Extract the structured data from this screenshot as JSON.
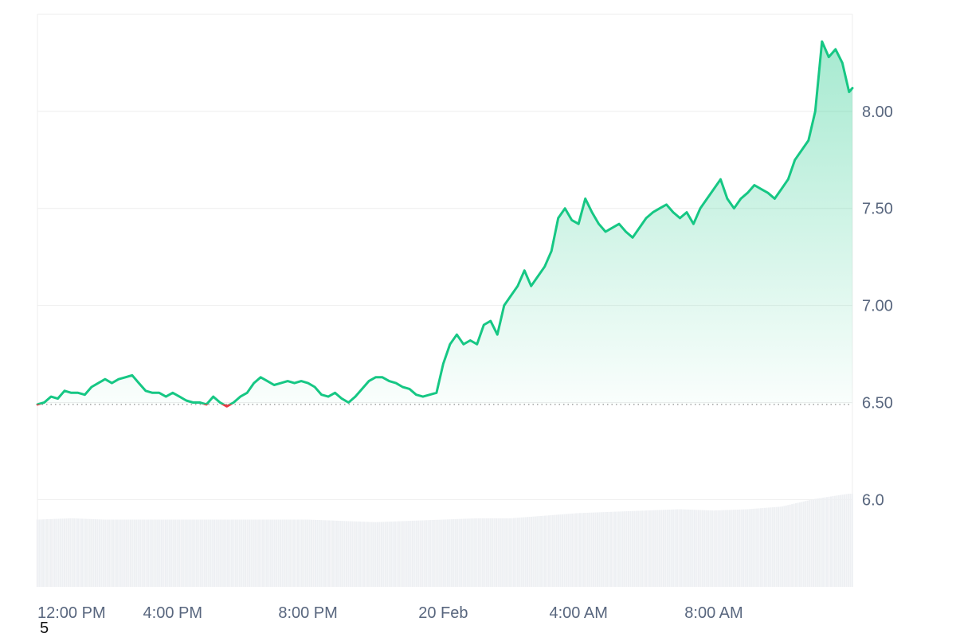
{
  "corner_text": "5",
  "colors": {
    "line_up": "#16c784",
    "line_down": "#ea3943",
    "fill_top": "#16c784",
    "grid": "#eeeeee",
    "baseline_dotted": "#999999",
    "volume": "#eef0f3",
    "axis_text": "#58667e"
  },
  "chart_data": {
    "type": "area",
    "title": "",
    "xlabel": "",
    "ylabel": "",
    "ylim": [
      5.55,
      8.5
    ],
    "y_ticks": [
      "6.0",
      "6.50",
      "7.00",
      "7.50",
      "8.00"
    ],
    "y_tick_values": [
      6.0,
      6.5,
      7.0,
      7.5,
      8.0
    ],
    "x_ticks": [
      "12:00 PM",
      "4:00 PM",
      "8:00 PM",
      "20 Feb",
      "4:00 AM",
      "8:00 AM"
    ],
    "x_tick_hours": [
      0,
      4,
      8,
      12,
      16,
      20
    ],
    "x_range_hours": [
      0,
      24.1
    ],
    "baseline": 6.49,
    "grid": true,
    "legend": "none",
    "series": [
      {
        "points": [
          [
            0.0,
            6.49
          ],
          [
            0.2,
            6.5
          ],
          [
            0.4,
            6.53
          ],
          [
            0.6,
            6.52
          ],
          [
            0.8,
            6.56
          ],
          [
            1.0,
            6.55
          ],
          [
            1.2,
            6.55
          ],
          [
            1.4,
            6.54
          ],
          [
            1.6,
            6.58
          ],
          [
            1.8,
            6.6
          ],
          [
            2.0,
            6.62
          ],
          [
            2.2,
            6.6
          ],
          [
            2.4,
            6.62
          ],
          [
            2.6,
            6.63
          ],
          [
            2.8,
            6.64
          ],
          [
            3.0,
            6.6
          ],
          [
            3.2,
            6.56
          ],
          [
            3.4,
            6.55
          ],
          [
            3.6,
            6.55
          ],
          [
            3.8,
            6.53
          ],
          [
            4.0,
            6.55
          ],
          [
            4.2,
            6.53
          ],
          [
            4.4,
            6.51
          ],
          [
            4.6,
            6.5
          ],
          [
            4.8,
            6.5
          ],
          [
            5.0,
            6.49
          ],
          [
            5.2,
            6.53
          ],
          [
            5.4,
            6.5
          ],
          [
            5.6,
            6.48
          ],
          [
            5.8,
            6.5
          ],
          [
            6.0,
            6.53
          ],
          [
            6.2,
            6.55
          ],
          [
            6.4,
            6.6
          ],
          [
            6.6,
            6.63
          ],
          [
            6.8,
            6.61
          ],
          [
            7.0,
            6.59
          ],
          [
            7.2,
            6.6
          ],
          [
            7.4,
            6.61
          ],
          [
            7.6,
            6.6
          ],
          [
            7.8,
            6.61
          ],
          [
            8.0,
            6.6
          ],
          [
            8.2,
            6.58
          ],
          [
            8.4,
            6.54
          ],
          [
            8.6,
            6.53
          ],
          [
            8.8,
            6.55
          ],
          [
            9.0,
            6.52
          ],
          [
            9.2,
            6.5
          ],
          [
            9.4,
            6.53
          ],
          [
            9.6,
            6.57
          ],
          [
            9.8,
            6.61
          ],
          [
            10.0,
            6.63
          ],
          [
            10.2,
            6.63
          ],
          [
            10.4,
            6.61
          ],
          [
            10.6,
            6.6
          ],
          [
            10.8,
            6.58
          ],
          [
            11.0,
            6.57
          ],
          [
            11.2,
            6.54
          ],
          [
            11.4,
            6.53
          ],
          [
            11.6,
            6.54
          ],
          [
            11.8,
            6.55
          ],
          [
            12.0,
            6.7
          ],
          [
            12.2,
            6.8
          ],
          [
            12.4,
            6.85
          ],
          [
            12.6,
            6.8
          ],
          [
            12.8,
            6.82
          ],
          [
            13.0,
            6.8
          ],
          [
            13.2,
            6.9
          ],
          [
            13.4,
            6.92
          ],
          [
            13.6,
            6.85
          ],
          [
            13.8,
            7.0
          ],
          [
            14.0,
            7.05
          ],
          [
            14.2,
            7.1
          ],
          [
            14.4,
            7.18
          ],
          [
            14.6,
            7.1
          ],
          [
            14.8,
            7.15
          ],
          [
            15.0,
            7.2
          ],
          [
            15.2,
            7.28
          ],
          [
            15.4,
            7.45
          ],
          [
            15.6,
            7.5
          ],
          [
            15.8,
            7.44
          ],
          [
            16.0,
            7.42
          ],
          [
            16.2,
            7.55
          ],
          [
            16.4,
            7.48
          ],
          [
            16.6,
            7.42
          ],
          [
            16.8,
            7.38
          ],
          [
            17.0,
            7.4
          ],
          [
            17.2,
            7.42
          ],
          [
            17.4,
            7.38
          ],
          [
            17.6,
            7.35
          ],
          [
            17.8,
            7.4
          ],
          [
            18.0,
            7.45
          ],
          [
            18.2,
            7.48
          ],
          [
            18.4,
            7.5
          ],
          [
            18.6,
            7.52
          ],
          [
            18.8,
            7.48
          ],
          [
            19.0,
            7.45
          ],
          [
            19.2,
            7.48
          ],
          [
            19.4,
            7.42
          ],
          [
            19.6,
            7.5
          ],
          [
            19.8,
            7.55
          ],
          [
            20.0,
            7.6
          ],
          [
            20.2,
            7.65
          ],
          [
            20.4,
            7.55
          ],
          [
            20.6,
            7.5
          ],
          [
            20.8,
            7.55
          ],
          [
            21.0,
            7.58
          ],
          [
            21.2,
            7.62
          ],
          [
            21.4,
            7.6
          ],
          [
            21.6,
            7.58
          ],
          [
            21.8,
            7.55
          ],
          [
            22.0,
            7.6
          ],
          [
            22.2,
            7.65
          ],
          [
            22.4,
            7.75
          ],
          [
            22.6,
            7.8
          ],
          [
            22.8,
            7.85
          ],
          [
            23.0,
            8.0
          ],
          [
            23.2,
            8.36
          ],
          [
            23.4,
            8.28
          ],
          [
            23.6,
            8.32
          ],
          [
            23.8,
            8.25
          ],
          [
            24.0,
            8.1
          ],
          [
            24.1,
            8.12
          ]
        ]
      }
    ],
    "volume": {
      "label": "volume bars",
      "values": [
        [
          0.0,
          0.52
        ],
        [
          1.0,
          0.53
        ],
        [
          2.0,
          0.52
        ],
        [
          3.0,
          0.52
        ],
        [
          4.0,
          0.52
        ],
        [
          5.0,
          0.52
        ],
        [
          6.0,
          0.52
        ],
        [
          7.0,
          0.52
        ],
        [
          8.0,
          0.52
        ],
        [
          9.0,
          0.51
        ],
        [
          10.0,
          0.5
        ],
        [
          11.0,
          0.51
        ],
        [
          12.0,
          0.52
        ],
        [
          13.0,
          0.53
        ],
        [
          14.0,
          0.53
        ],
        [
          15.0,
          0.55
        ],
        [
          16.0,
          0.57
        ],
        [
          17.0,
          0.58
        ],
        [
          18.0,
          0.59
        ],
        [
          19.0,
          0.6
        ],
        [
          20.0,
          0.59
        ],
        [
          21.0,
          0.6
        ],
        [
          22.0,
          0.62
        ],
        [
          23.0,
          0.68
        ],
        [
          24.0,
          0.72
        ]
      ]
    }
  }
}
